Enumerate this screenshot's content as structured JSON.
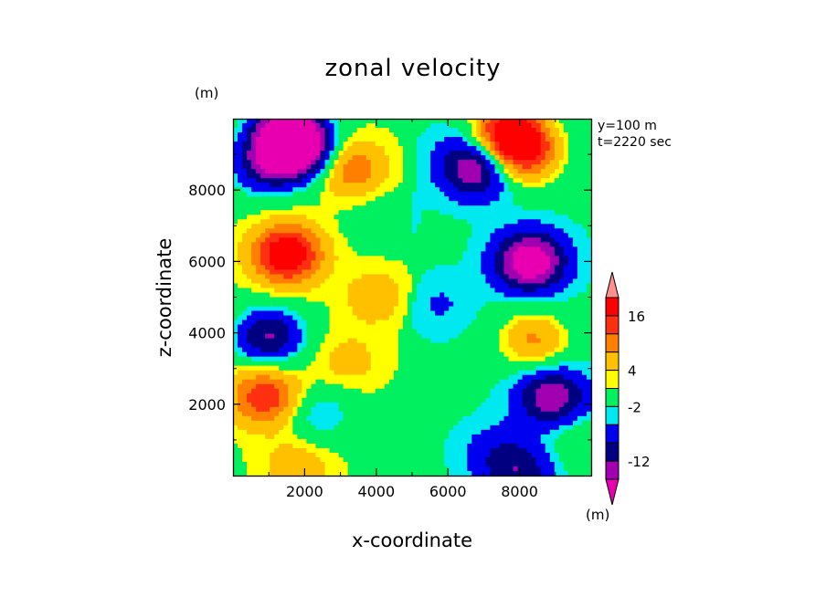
{
  "chart_data": {
    "type": "heatmap",
    "title": "zonal velocity",
    "xlabel": "x-coordinate",
    "ylabel": "z-coordinate",
    "units_label": "(m)",
    "annotations": [
      "y=100 m",
      "t=2220 sec"
    ],
    "xlim": [
      0,
      10000
    ],
    "ylim": [
      0,
      10000
    ],
    "x_ticks": [
      2000,
      4000,
      6000,
      8000
    ],
    "y_ticks": [
      2000,
      4000,
      6000,
      8000
    ],
    "grid": false,
    "legend": "colorbar-right",
    "colorbar": {
      "levels": [
        -20,
        -16,
        -12,
        -8,
        -4,
        -2,
        2,
        4,
        8,
        12,
        16,
        20
      ],
      "labeled_levels": [
        16,
        4,
        -2,
        -12
      ],
      "colors": [
        "#e800b0",
        "#a000b0",
        "#000080",
        "#0000f0",
        "#00e8f0",
        "#00f060",
        "#ffff00",
        "#ffc000",
        "#ff8000",
        "#ff3010",
        "#ff0000",
        "#ff9090"
      ],
      "extends": "both",
      "unit_label": "(m)"
    },
    "features": [
      {
        "x": 1500,
        "z": 9600,
        "u": -22
      },
      {
        "x": 1900,
        "z": 9100,
        "u": -18
      },
      {
        "x": 900,
        "z": 8700,
        "u": -12
      },
      {
        "x": 3300,
        "z": 8600,
        "u": 10
      },
      {
        "x": 1500,
        "z": 6200,
        "u": 20
      },
      {
        "x": 1000,
        "z": 3900,
        "u": -14
      },
      {
        "x": 3200,
        "z": 3200,
        "u": 4
      },
      {
        "x": 900,
        "z": 2200,
        "u": 14
      },
      {
        "x": 2400,
        "z": 1700,
        "u": -6
      },
      {
        "x": 1800,
        "z": 300,
        "u": 5
      },
      {
        "x": 4000,
        "z": 5000,
        "u": 5
      },
      {
        "x": 4100,
        "z": 7300,
        "u": -2
      },
      {
        "x": 5700,
        "z": 4800,
        "u": -3
      },
      {
        "x": 7700,
        "z": 9600,
        "u": 22
      },
      {
        "x": 8200,
        "z": 9000,
        "u": 14
      },
      {
        "x": 6800,
        "z": 8600,
        "u": -14
      },
      {
        "x": 6400,
        "z": 9100,
        "u": -2
      },
      {
        "x": 8300,
        "z": 6000,
        "u": -20
      },
      {
        "x": 8400,
        "z": 3800,
        "u": 10
      },
      {
        "x": 8900,
        "z": 2200,
        "u": -14
      },
      {
        "x": 7300,
        "z": 700,
        "u": -4
      },
      {
        "x": 8000,
        "z": 100,
        "u": -9
      },
      {
        "x": 9600,
        "z": 1000,
        "u": 3
      }
    ]
  }
}
